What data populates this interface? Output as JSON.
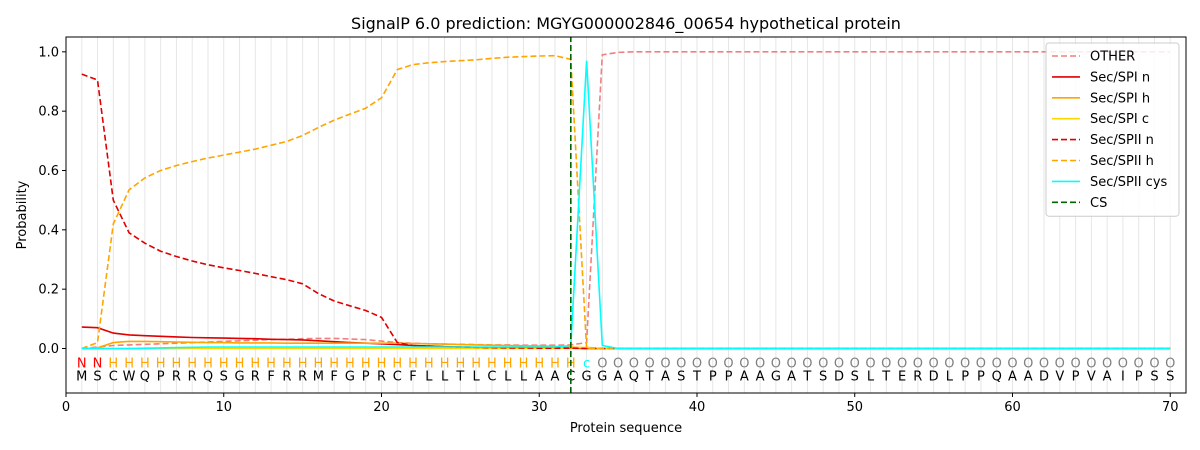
{
  "chart_data": {
    "type": "line",
    "title": "SignalP 6.0 prediction: MGYG000002846_00654 hypothetical protein",
    "xlabel": "Protein sequence",
    "ylabel": "Probability",
    "xlim": [
      0,
      71
    ],
    "ylim": [
      -0.15,
      1.05
    ],
    "x_ticks": [
      0,
      10,
      20,
      30,
      40,
      50,
      60,
      70
    ],
    "y_ticks": [
      0.0,
      0.2,
      0.4,
      0.6,
      0.8,
      1.0
    ],
    "grid": "vertical lines at each residue position",
    "legend_position": "top-right",
    "sequence": [
      "M",
      "S",
      "C",
      "W",
      "Q",
      "P",
      "R",
      "R",
      "Q",
      "S",
      "G",
      "R",
      "F",
      "R",
      "R",
      "M",
      "F",
      "G",
      "P",
      "R",
      "C",
      "F",
      "L",
      "L",
      "T",
      "L",
      "C",
      "L",
      "L",
      "A",
      "A",
      "C",
      "G",
      "G",
      "A",
      "Q",
      "T",
      "A",
      "S",
      "T",
      "P",
      "P",
      "A",
      "A",
      "G",
      "A",
      "T",
      "S",
      "D",
      "S",
      "L",
      "T",
      "E",
      "R",
      "D",
      "L",
      "P",
      "P",
      "Q",
      "A",
      "A",
      "D",
      "V",
      "P",
      "V",
      "A",
      "I",
      "P",
      "S",
      "S"
    ],
    "region_labels": [
      "N",
      "N",
      "H",
      "H",
      "H",
      "H",
      "H",
      "H",
      "H",
      "H",
      "H",
      "H",
      "H",
      "H",
      "H",
      "H",
      "H",
      "H",
      "H",
      "H",
      "H",
      "H",
      "H",
      "H",
      "H",
      "H",
      "H",
      "H",
      "H",
      "H",
      "H",
      "H",
      "c",
      "O",
      "O",
      "O",
      "O",
      "O",
      "O",
      "O",
      "O",
      "O",
      "O",
      "O",
      "O",
      "O",
      "O",
      "O",
      "O",
      "O",
      "O",
      "O",
      "O",
      "O",
      "O",
      "O",
      "O",
      "O",
      "O",
      "O",
      "O",
      "O",
      "O",
      "O",
      "O",
      "O",
      "O",
      "O",
      "O",
      "O"
    ],
    "region_colors": {
      "N": "#ff0000",
      "H": "#ffa500",
      "c": "#00ffff",
      "O": "#808080"
    },
    "cleavage_site": 32,
    "series": [
      {
        "name": "OTHER",
        "color": "#f08080",
        "dash": "dashed",
        "x": [
          1,
          2,
          3,
          4,
          5,
          6,
          7,
          8,
          9,
          10,
          11,
          12,
          13,
          14,
          15,
          16,
          17,
          18,
          19,
          20,
          21,
          22,
          23,
          24,
          25,
          26,
          27,
          28,
          29,
          30,
          31,
          32,
          33,
          34,
          35,
          36,
          70
        ],
        "y": [
          0.0,
          0.005,
          0.01,
          0.012,
          0.014,
          0.016,
          0.018,
          0.02,
          0.022,
          0.024,
          0.026,
          0.028,
          0.03,
          0.031,
          0.033,
          0.034,
          0.034,
          0.032,
          0.03,
          0.025,
          0.02,
          0.018,
          0.016,
          0.015,
          0.014,
          0.013,
          0.012,
          0.012,
          0.011,
          0.011,
          0.011,
          0.012,
          0.02,
          0.99,
          0.998,
          1.0,
          1.0
        ]
      },
      {
        "name": "Sec/SPI n",
        "color": "#e00000",
        "dash": "solid",
        "x": [
          1,
          2,
          3,
          4,
          5,
          6,
          7,
          8,
          9,
          10,
          11,
          12,
          13,
          14,
          15,
          16,
          17,
          18,
          19,
          20,
          21,
          22,
          23,
          24,
          25,
          26,
          27,
          28,
          29,
          30,
          31,
          32,
          33,
          34,
          70
        ],
        "y": [
          0.072,
          0.07,
          0.052,
          0.046,
          0.043,
          0.041,
          0.039,
          0.037,
          0.036,
          0.035,
          0.034,
          0.033,
          0.031,
          0.03,
          0.029,
          0.026,
          0.023,
          0.02,
          0.018,
          0.016,
          0.013,
          0.01,
          0.008,
          0.006,
          0.005,
          0.004,
          0.003,
          0.003,
          0.002,
          0.002,
          0.002,
          0.001,
          0.0,
          0.0,
          0.0
        ]
      },
      {
        "name": "Sec/SPI h",
        "color": "#ffa500",
        "dash": "solid",
        "x": [
          1,
          2,
          3,
          4,
          5,
          6,
          7,
          8,
          9,
          10,
          11,
          12,
          13,
          14,
          15,
          16,
          17,
          18,
          19,
          20,
          21,
          22,
          23,
          24,
          25,
          26,
          27,
          28,
          29,
          30,
          31,
          32,
          33,
          34,
          70
        ],
        "y": [
          0.0,
          0.002,
          0.02,
          0.024,
          0.024,
          0.023,
          0.022,
          0.021,
          0.02,
          0.02,
          0.019,
          0.019,
          0.019,
          0.018,
          0.018,
          0.018,
          0.018,
          0.018,
          0.018,
          0.018,
          0.018,
          0.017,
          0.016,
          0.015,
          0.013,
          0.012,
          0.011,
          0.01,
          0.009,
          0.008,
          0.007,
          0.005,
          0.002,
          0.0,
          0.0
        ]
      },
      {
        "name": "Sec/SPI c",
        "color": "#ffd700",
        "dash": "solid",
        "x": [
          1,
          31,
          32,
          33,
          34,
          70
        ],
        "y": [
          0.0,
          0.0,
          0.002,
          0.004,
          0.0,
          0.0
        ]
      },
      {
        "name": "Sec/SPII n",
        "color": "#e00000",
        "dash": "dashed",
        "x": [
          1,
          2,
          3,
          4,
          5,
          6,
          7,
          8,
          9,
          10,
          11,
          12,
          13,
          14,
          15,
          16,
          17,
          18,
          19,
          20,
          21,
          22,
          23,
          24,
          25,
          26,
          27,
          28,
          29,
          30,
          31,
          32,
          33,
          34,
          70
        ],
        "y": [
          0.925,
          0.905,
          0.5,
          0.39,
          0.355,
          0.328,
          0.31,
          0.295,
          0.282,
          0.272,
          0.263,
          0.253,
          0.242,
          0.232,
          0.218,
          0.185,
          0.16,
          0.144,
          0.128,
          0.105,
          0.02,
          0.01,
          0.008,
          0.006,
          0.005,
          0.004,
          0.003,
          0.002,
          0.002,
          0.001,
          0.001,
          0.001,
          0.0,
          0.0,
          0.0
        ]
      },
      {
        "name": "Sec/SPII h",
        "color": "#ffa500",
        "dash": "dashed",
        "x": [
          1,
          2,
          3,
          4,
          5,
          6,
          7,
          8,
          9,
          10,
          11,
          12,
          13,
          14,
          15,
          16,
          17,
          18,
          19,
          20,
          21,
          22,
          23,
          24,
          25,
          26,
          27,
          28,
          29,
          30,
          31,
          32,
          33,
          34,
          70
        ],
        "y": [
          0.0,
          0.02,
          0.42,
          0.535,
          0.575,
          0.6,
          0.617,
          0.63,
          0.642,
          0.652,
          0.662,
          0.672,
          0.685,
          0.698,
          0.718,
          0.745,
          0.77,
          0.79,
          0.81,
          0.845,
          0.94,
          0.957,
          0.963,
          0.967,
          0.97,
          0.973,
          0.978,
          0.982,
          0.984,
          0.986,
          0.987,
          0.975,
          0.0,
          0.0,
          0.0
        ]
      },
      {
        "name": "Sec/SPII cys",
        "color": "#00ffff",
        "dash": "solid",
        "x": [
          1,
          2,
          3,
          4,
          5,
          6,
          7,
          8,
          9,
          10,
          11,
          12,
          13,
          14,
          15,
          16,
          17,
          18,
          19,
          20,
          21,
          22,
          23,
          24,
          25,
          26,
          27,
          28,
          29,
          30,
          31,
          32,
          33,
          34,
          35,
          70
        ],
        "y": [
          0.0,
          0.0,
          0.0,
          0.0,
          0.001,
          0.002,
          0.003,
          0.004,
          0.005,
          0.005,
          0.005,
          0.005,
          0.005,
          0.005,
          0.005,
          0.005,
          0.005,
          0.005,
          0.005,
          0.005,
          0.005,
          0.005,
          0.005,
          0.005,
          0.005,
          0.005,
          0.005,
          0.005,
          0.005,
          0.005,
          0.005,
          0.01,
          0.97,
          0.01,
          0.0,
          0.0
        ]
      },
      {
        "name": "CS",
        "color": "#006400",
        "dash": "dashed",
        "x": [
          32,
          32
        ],
        "y": [
          -0.15,
          1.05
        ]
      }
    ]
  }
}
